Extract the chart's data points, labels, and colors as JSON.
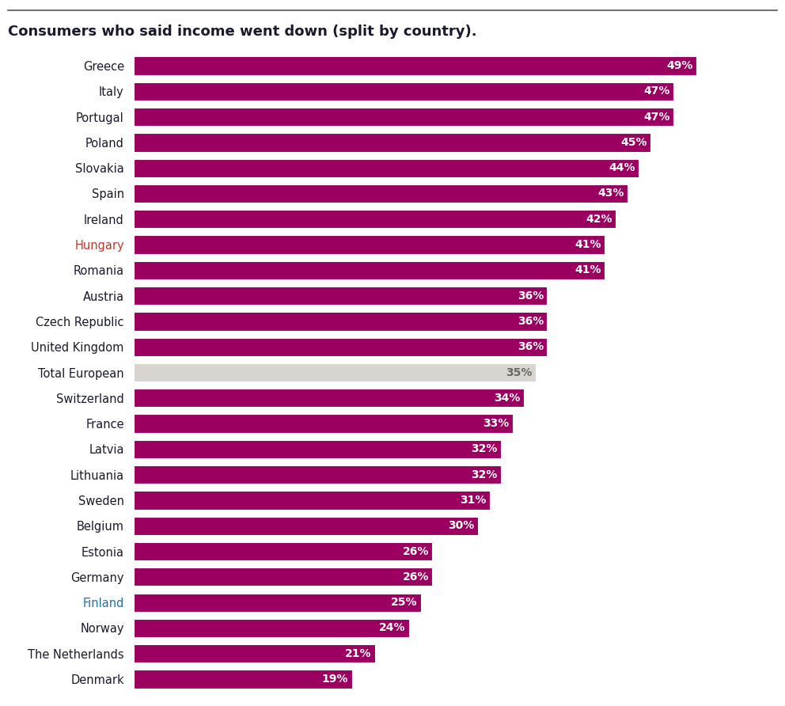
{
  "title": "Consumers who said income went down (split by country).",
  "categories": [
    "Greece",
    "Italy",
    "Portugal",
    "Poland",
    "Slovakia",
    "Spain",
    "Ireland",
    "Hungary",
    "Romania",
    "Austria",
    "Czech Republic",
    "United Kingdom",
    "Total European",
    "Switzerland",
    "France",
    "Latvia",
    "Lithuania",
    "Sweden",
    "Belgium",
    "Estonia",
    "Germany",
    "Finland",
    "Norway",
    "The Netherlands",
    "Denmark"
  ],
  "values": [
    49,
    47,
    47,
    45,
    44,
    43,
    42,
    41,
    41,
    36,
    36,
    36,
    35,
    34,
    33,
    32,
    32,
    31,
    30,
    26,
    26,
    25,
    24,
    21,
    19
  ],
  "bar_color": "#9B0060",
  "total_european_color": "#D8D5D0",
  "total_european_text_color": "#666666",
  "label_color": "#1a1a2e",
  "hungary_color": "#c0392b",
  "finland_color": "#2471a3",
  "background_color": "#ffffff",
  "title_fontsize": 13,
  "label_fontsize": 10.5,
  "value_fontsize": 10,
  "top_line_color": "#555555",
  "xlim": [
    0,
    55
  ]
}
